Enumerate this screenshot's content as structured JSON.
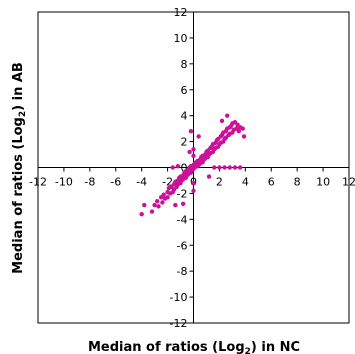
{
  "chart_data": {
    "type": "scatter",
    "title": "",
    "xlabel": {
      "pre": "Median of ratios (Log",
      "sub": "2",
      "post": ") in NC"
    },
    "ylabel": {
      "pre": "Median of ratios (Log",
      "sub": "2",
      "post": ") in AB"
    },
    "xlim": [
      -12,
      12
    ],
    "ylim": [
      -12,
      12
    ],
    "xticks": [
      -12,
      -10,
      -8,
      -6,
      -4,
      -2,
      0,
      2,
      4,
      6,
      8,
      10,
      12
    ],
    "yticks": [
      -12,
      -10,
      -8,
      -6,
      -4,
      -2,
      0,
      2,
      4,
      6,
      8,
      10,
      12
    ],
    "grid": false,
    "legend": "none",
    "marker_color": "#cc1199",
    "series": [
      {
        "points": [
          [
            -3.2,
            -3.4
          ],
          [
            -3.0,
            -2.9
          ],
          [
            -2.8,
            -2.6
          ],
          [
            -2.7,
            -3.0
          ],
          [
            -2.5,
            -2.3
          ],
          [
            -2.4,
            -2.7
          ],
          [
            -2.3,
            -2.1
          ],
          [
            -2.2,
            -2.4
          ],
          [
            -2.0,
            -1.9
          ],
          [
            -2.0,
            -2.3
          ],
          [
            -1.9,
            -1.6
          ],
          [
            -1.8,
            -2.0
          ],
          [
            -1.7,
            -1.5
          ],
          [
            -1.6,
            -1.9
          ],
          [
            -1.5,
            -1.3
          ],
          [
            -1.5,
            -1.7
          ],
          [
            -1.4,
            -1.1
          ],
          [
            -1.3,
            -1.5
          ],
          [
            -1.2,
            -1.0
          ],
          [
            -1.2,
            -1.3
          ],
          [
            -1.1,
            -0.8
          ],
          [
            -1.0,
            -1.2
          ],
          [
            -1.0,
            -0.7
          ],
          [
            -0.9,
            -1.0
          ],
          [
            -0.8,
            -0.6
          ],
          [
            -0.8,
            -0.9
          ],
          [
            -0.7,
            -0.4
          ],
          [
            -0.6,
            -0.8
          ],
          [
            -0.6,
            -0.3
          ],
          [
            -0.5,
            -0.6
          ],
          [
            -0.4,
            -0.2
          ],
          [
            -0.4,
            -0.5
          ],
          [
            -0.3,
            0.0
          ],
          [
            -0.2,
            -0.4
          ],
          [
            -0.2,
            0.1
          ],
          [
            -0.1,
            -0.2
          ],
          [
            0.0,
            0.2
          ],
          [
            0.0,
            -0.1
          ],
          [
            0.1,
            0.3
          ],
          [
            0.1,
            0.0
          ],
          [
            0.2,
            0.4
          ],
          [
            0.3,
            0.1
          ],
          [
            0.3,
            0.5
          ],
          [
            0.4,
            0.2
          ],
          [
            0.5,
            0.6
          ],
          [
            0.5,
            0.3
          ],
          [
            0.6,
            0.8
          ],
          [
            0.7,
            0.4
          ],
          [
            0.7,
            0.9
          ],
          [
            0.8,
            0.6
          ],
          [
            0.9,
            1.0
          ],
          [
            0.9,
            0.7
          ],
          [
            1.0,
            1.2
          ],
          [
            1.1,
            0.8
          ],
          [
            1.1,
            1.3
          ],
          [
            1.2,
            1.0
          ],
          [
            1.3,
            1.5
          ],
          [
            1.3,
            1.1
          ],
          [
            1.4,
            1.6
          ],
          [
            1.5,
            1.2
          ],
          [
            1.5,
            1.8
          ],
          [
            1.6,
            1.4
          ],
          [
            1.7,
            1.9
          ],
          [
            1.7,
            1.5
          ],
          [
            1.8,
            2.1
          ],
          [
            1.9,
            1.6
          ],
          [
            1.9,
            2.2
          ],
          [
            2.0,
            1.8
          ],
          [
            2.1,
            2.4
          ],
          [
            2.1,
            1.9
          ],
          [
            2.2,
            2.5
          ],
          [
            2.3,
            2.0
          ],
          [
            2.3,
            2.7
          ],
          [
            2.4,
            2.2
          ],
          [
            2.5,
            2.8
          ],
          [
            2.5,
            2.3
          ],
          [
            2.6,
            3.0
          ],
          [
            2.7,
            2.5
          ],
          [
            2.8,
            3.1
          ],
          [
            2.8,
            2.6
          ],
          [
            2.9,
            3.2
          ],
          [
            3.0,
            2.7
          ],
          [
            3.0,
            3.4
          ],
          [
            3.1,
            2.9
          ],
          [
            3.2,
            3.5
          ],
          [
            3.3,
            3.0
          ],
          [
            3.4,
            3.3
          ],
          [
            3.5,
            2.8
          ],
          [
            3.6,
            3.1
          ],
          [
            3.8,
            3.0
          ],
          [
            2.6,
            4.0
          ],
          [
            2.2,
            3.6
          ],
          [
            3.9,
            2.4
          ],
          [
            -0.2,
            2.8
          ],
          [
            0.4,
            2.4
          ],
          [
            -0.3,
            1.2
          ],
          [
            1.2,
            -0.7
          ],
          [
            -3.8,
            -2.9
          ],
          [
            -4.0,
            -3.6
          ],
          [
            -0.8,
            -2.8
          ],
          [
            -1.4,
            -2.9
          ],
          [
            2.4,
            0.0
          ],
          [
            2.8,
            0.0
          ],
          [
            3.2,
            0.0
          ],
          [
            3.6,
            0.0
          ],
          [
            1.6,
            0.0
          ],
          [
            2.0,
            0.0
          ],
          [
            -1.6,
            0.0
          ],
          [
            -1.2,
            0.1
          ],
          [
            0.0,
            -1.2
          ],
          [
            0.0,
            -1.8
          ],
          [
            0.0,
            1.4
          ],
          [
            0.0,
            0.9
          ]
        ]
      }
    ]
  }
}
